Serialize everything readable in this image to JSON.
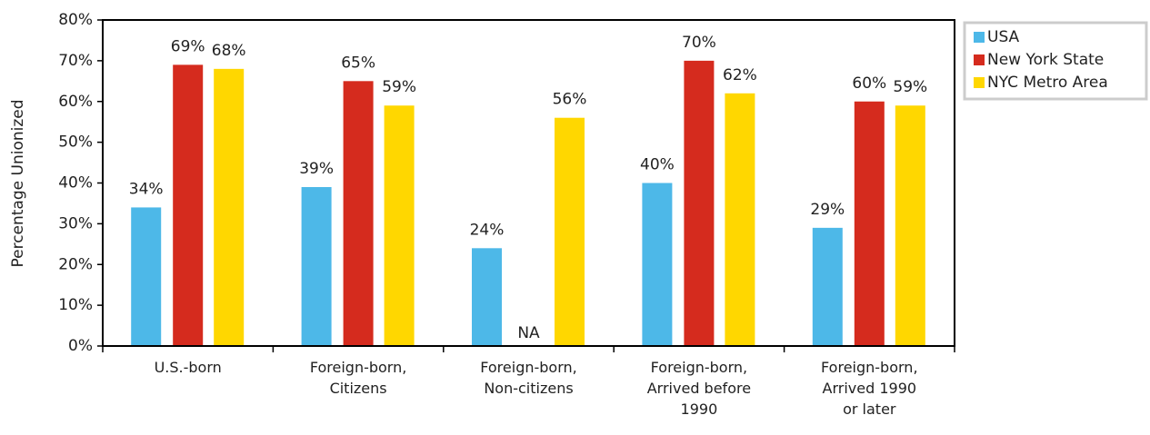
{
  "chart_data": {
    "type": "bar",
    "y_label": "Percentage Unionized",
    "categories": [
      "U.S.-born",
      "Foreign-born, Citizens",
      "Foreign-born, Non-citizens",
      "Foreign-born, Arrived before 1990",
      "Foreign-born, Arrived 1990 or later"
    ],
    "series": [
      {
        "name": "USA",
        "color": "#4db8e8",
        "values": [
          34,
          39,
          24,
          40,
          29
        ],
        "value_labels": [
          "34%",
          "39%",
          "24%",
          "40%",
          "29%"
        ]
      },
      {
        "name": "New York State",
        "color": "#d52b1e",
        "values": [
          69,
          65,
          null,
          70,
          60
        ],
        "value_labels": [
          "69%",
          "65%",
          "NA",
          "70%",
          "60%"
        ]
      },
      {
        "name": "NYC Metro Area",
        "color": "#ffd700",
        "values": [
          68,
          59,
          56,
          62,
          59
        ],
        "value_labels": [
          "68%",
          "59%",
          "56%",
          "62%",
          "59%"
        ]
      }
    ],
    "ylim": [
      0,
      80
    ],
    "yticks": [
      {
        "value": 0,
        "label": "0%"
      },
      {
        "value": 10,
        "label": "10%"
      },
      {
        "value": 20,
        "label": "20%"
      },
      {
        "value": 30,
        "label": "30%"
      },
      {
        "value": 40,
        "label": "40%"
      },
      {
        "value": 50,
        "label": "50%"
      },
      {
        "value": 60,
        "label": "60%"
      },
      {
        "value": 70,
        "label": "70%"
      },
      {
        "value": 80,
        "label": "80%"
      }
    ],
    "grid": false,
    "legend": "right"
  }
}
